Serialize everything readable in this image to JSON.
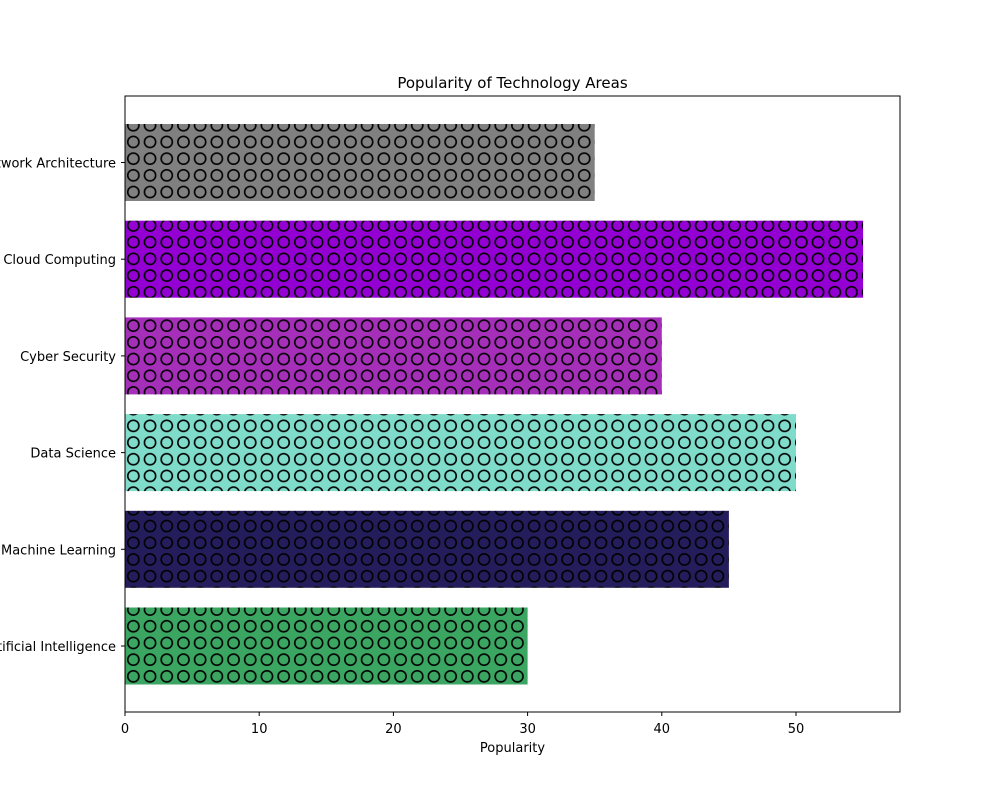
{
  "chart_data": {
    "type": "bar",
    "orientation": "horizontal",
    "title": "Popularity of Technology Areas",
    "xlabel": "Popularity",
    "ylabel": "",
    "xlim": [
      0,
      57.75
    ],
    "xticks": [
      0,
      10,
      20,
      30,
      40,
      50
    ],
    "categories": [
      "Artificial Intelligence",
      "Machine Learning",
      "Data Science",
      "Cyber Security",
      "Cloud Computing",
      "Network Architecture"
    ],
    "values": [
      30,
      45,
      50,
      40,
      55,
      35
    ],
    "colors": [
      "#3ba662",
      "#241d5c",
      "#7fdccb",
      "#a62fba",
      "#9400d3",
      "#808080"
    ],
    "hatch": "circles",
    "grid": false,
    "legend": "none"
  }
}
